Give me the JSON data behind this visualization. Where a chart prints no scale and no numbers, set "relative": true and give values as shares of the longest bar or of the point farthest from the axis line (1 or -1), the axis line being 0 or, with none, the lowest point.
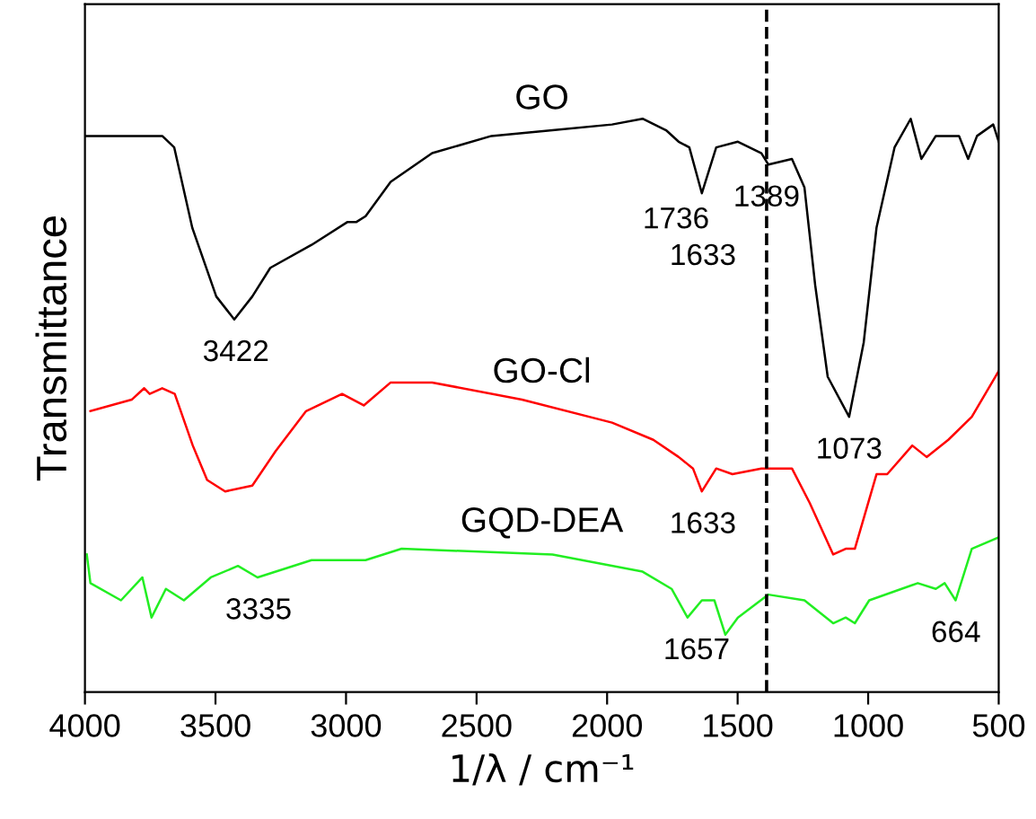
{
  "chart_data": {
    "type": "line",
    "relative": true,
    "xlabel": "1/λ / cm⁻¹",
    "ylabel": "Transmittance",
    "xlim": [
      4000,
      500
    ],
    "xticks": [
      4000,
      3500,
      3000,
      2500,
      2000,
      1500,
      1000,
      500
    ],
    "grid": false,
    "marker": "none",
    "line_style": "solid",
    "tick_labels": "x",
    "series": [
      {
        "name": "GO",
        "color": "#000000",
        "x": [
          4000,
          3704,
          3658,
          3589,
          3497,
          3428,
          3359,
          3290,
          3132,
          2994,
          2960,
          2925,
          2829,
          2670,
          2443,
          2209,
          1981,
          1864,
          1774,
          1726,
          1685,
          1637,
          1582,
          1499,
          1409,
          1382,
          1292,
          1244,
          1203,
          1155,
          1073,
          1017,
          968,
          899,
          837,
          796,
          741,
          652,
          617,
          583,
          521,
          500
        ],
        "values": [
          0.97,
          0.97,
          0.95,
          0.81,
          0.69,
          0.65,
          0.69,
          0.74,
          0.78,
          0.82,
          0.82,
          0.83,
          0.89,
          0.94,
          0.97,
          0.98,
          0.99,
          1.0,
          0.98,
          0.96,
          0.95,
          0.87,
          0.95,
          0.96,
          0.94,
          0.92,
          0.93,
          0.88,
          0.71,
          0.55,
          0.48,
          0.61,
          0.81,
          0.95,
          1.0,
          0.93,
          0.97,
          0.97,
          0.93,
          0.97,
          0.99,
          0.96
        ]
      },
      {
        "name": "GO-Cl",
        "color": "#ff0000",
        "x": [
          3979,
          3821,
          3773,
          3752,
          3704,
          3656,
          3587,
          3532,
          3463,
          3359,
          3270,
          3153,
          3015,
          2932,
          2829,
          2670,
          2326,
          1981,
          1823,
          1726,
          1671,
          1637,
          1582,
          1520,
          1409,
          1292,
          1224,
          1134,
          1086,
          1051,
          968,
          927,
          831,
          776,
          693,
          603,
          500
        ],
        "values": [
          0.49,
          0.51,
          0.53,
          0.52,
          0.53,
          0.52,
          0.43,
          0.37,
          0.35,
          0.36,
          0.42,
          0.49,
          0.52,
          0.5,
          0.54,
          0.54,
          0.51,
          0.47,
          0.44,
          0.41,
          0.39,
          0.35,
          0.39,
          0.38,
          0.39,
          0.39,
          0.33,
          0.24,
          0.25,
          0.25,
          0.38,
          0.38,
          0.43,
          0.41,
          0.44,
          0.48,
          0.56
        ]
      },
      {
        "name": "GQD-DEA",
        "color": "#22ee22",
        "x": [
          3993,
          3979,
          3862,
          3780,
          3745,
          3690,
          3621,
          3518,
          3414,
          3339,
          3132,
          2925,
          2787,
          2209,
          1864,
          1753,
          1692,
          1637,
          1589,
          1547,
          1499,
          1382,
          1244,
          1134,
          1086,
          1051,
          996,
          810,
          741,
          707,
          665,
          603,
          500
        ],
        "values": [
          0.24,
          0.19,
          0.16,
          0.2,
          0.13,
          0.18,
          0.16,
          0.2,
          0.22,
          0.2,
          0.23,
          0.23,
          0.25,
          0.24,
          0.21,
          0.18,
          0.13,
          0.16,
          0.16,
          0.1,
          0.13,
          0.17,
          0.16,
          0.12,
          0.13,
          0.12,
          0.16,
          0.19,
          0.18,
          0.19,
          0.16,
          0.25,
          0.27
        ]
      }
    ],
    "ref_lines": [
      {
        "axis": "x",
        "value": 1389,
        "line_style": "dashed",
        "color": "#000000"
      }
    ],
    "annotations": [
      {
        "text": "3422",
        "x": 3422,
        "y": 0.65
      },
      {
        "text": "1736",
        "x": 1736,
        "y": 0.96
      },
      {
        "text": "1633",
        "x": 1633,
        "y": 0.87
      },
      {
        "text": "1389",
        "x": 1389,
        "y": 0.92
      },
      {
        "text": "1073",
        "x": 1073,
        "y": 0.48
      },
      {
        "text": "1633",
        "x": 1633,
        "y": 0.35
      },
      {
        "text": "3335",
        "x": 3335,
        "y": 0.2
      },
      {
        "text": "1657",
        "x": 1657,
        "y": 0.13
      },
      {
        "text": "664",
        "x": 664,
        "y": 0.16
      }
    ]
  }
}
